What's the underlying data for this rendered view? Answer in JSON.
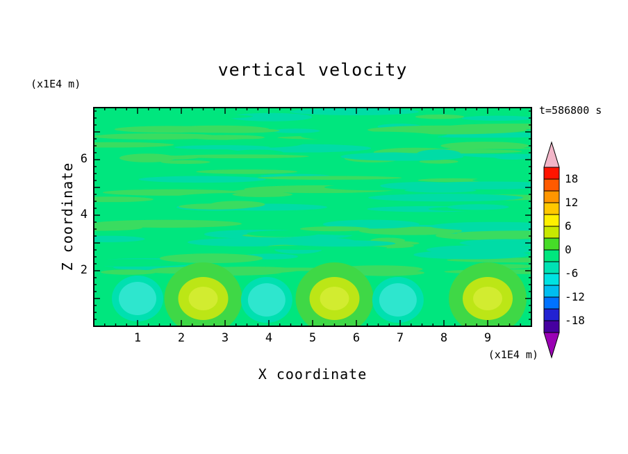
{
  "title": "vertical velocity",
  "time_label": "t=586800 s",
  "z_axis_unit": "(x1E4 m)",
  "x_axis_unit": "(x1E4 m)",
  "x_axis_label": "X coordinate",
  "z_axis_label": "Z coordinate",
  "chart_data": {
    "type": "heatmap",
    "title": "vertical velocity",
    "xlabel": "X coordinate",
    "ylabel": "Z coordinate",
    "x_unit": "x1E4 m",
    "z_unit": "x1E4 m",
    "time": "t=586800 s",
    "x_range": [
      0,
      10
    ],
    "z_range": [
      0,
      7.875
    ],
    "x_ticks": [
      1,
      2,
      3,
      4,
      5,
      6,
      7,
      8,
      9
    ],
    "z_ticks": [
      2,
      4,
      6
    ],
    "contour_interval": 3,
    "level_labels": [
      18,
      12,
      6,
      0,
      -6,
      -12,
      -18
    ],
    "field_summary": {
      "background": "values mostly between -3 and +3 (spring green with thin horizontal streaks of adjacent contour levels) above z=2",
      "updraft_cells": [
        {
          "x": 2.5,
          "z": 1.0,
          "peak": 6
        },
        {
          "x": 5.5,
          "z": 1.0,
          "peak": 6
        },
        {
          "x": 9.0,
          "z": 1.0,
          "peak": 6
        }
      ],
      "downdraft_cells": [
        {
          "x": 1.0,
          "z": 1.0,
          "peak": -6
        },
        {
          "x": 3.95,
          "z": 0.95,
          "peak": -6
        },
        {
          "x": 6.95,
          "z": 0.95,
          "peak": -6
        }
      ]
    }
  },
  "colorbar": {
    "labels": [
      18,
      12,
      6,
      0,
      -6,
      -12,
      -18
    ],
    "max_level": 21,
    "step": 3,
    "segment_colors": [
      "#FF1400",
      "#FF5A00",
      "#FF9600",
      "#FFC800",
      "#FFF000",
      "#C8E800",
      "#46DC28",
      "#00E67E",
      "#00E2B4",
      "#00E2E2",
      "#00BEF0",
      "#0072FF",
      "#2222D2",
      "#4600A0"
    ],
    "arrow_top_color": "#F2B6C8",
    "arrow_bottom_color": "#9A00B4"
  },
  "field_style": {
    "base_color": "#00E67E",
    "streak_colors": [
      "#3ADC60",
      "#00DCA6"
    ],
    "updraft": {
      "ring_color": "#3FD846",
      "core_color": "#BCE616",
      "inner_color": "#D2EC30"
    },
    "downdraft": {
      "outer_color": "#00E0B0",
      "core_color": "#2EE6CE"
    }
  }
}
